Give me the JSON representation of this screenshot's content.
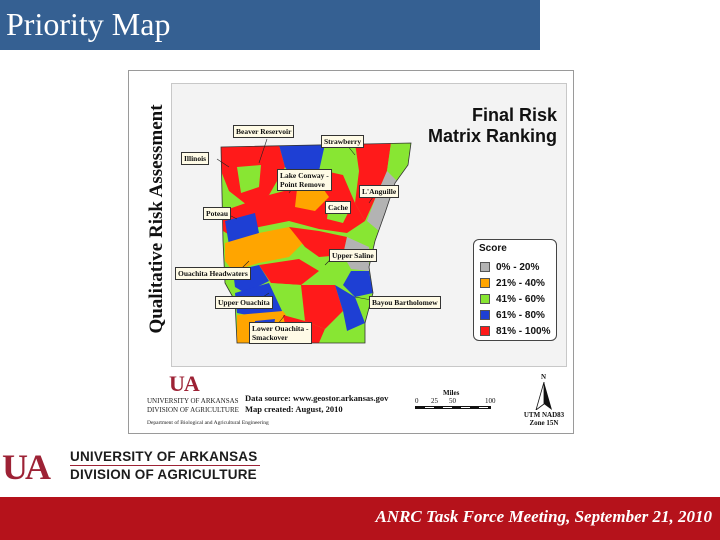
{
  "slide": {
    "title": "Priority Map",
    "footer": "ANRC Task Force Meeting, September 21, 2010"
  },
  "map": {
    "vertical_title": "Qualitative Risk Assessment",
    "risk_title_line1": "Final Risk",
    "risk_title_line2": "Matrix Ranking",
    "legend": {
      "title": "Score",
      "items": [
        {
          "label": "0% - 20%",
          "color": "#b3b3b3"
        },
        {
          "label": "21% - 40%",
          "color": "#ffa500"
        },
        {
          "label": "41% - 60%",
          "color": "#88e633"
        },
        {
          "label": "61% - 80%",
          "color": "#1e3fd4"
        },
        {
          "label": "81% - 100%",
          "color": "#ff1a1a"
        }
      ]
    },
    "labels": {
      "beaver_reservoir": "Beaver Reservoir",
      "strawberry": "Strawberry",
      "illinois": "Illinois",
      "lake_conway_1": "Lake Conway -",
      "lake_conway_2": "Point Remove",
      "l_anguille": "L'Anguille",
      "cache": "Cache",
      "poteau": "Poteau",
      "upper_saline": "Upper Saline",
      "ouachita_headwaters": "Ouachita Headwaters",
      "upper_ouachita": "Upper Ouachita",
      "bayou_bartholomew": "Bayou Bartholomew",
      "lower_ouachita_1": "Lower Ouachita -",
      "lower_ouachita_2": "Smackover"
    },
    "data_source": "Data source: www.geostor.arkansas.gov",
    "map_created": "Map created: August, 2010",
    "small_logo": {
      "mark": "UA",
      "line1": "UNIVERSITY OF ARKANSAS",
      "line2": "DIVISION OF AGRICULTURE",
      "dept": "Department of Biological and Agricultural Engineering"
    },
    "scale": {
      "title": "Miles",
      "ticks": [
        "0",
        "25",
        "50",
        "100"
      ]
    },
    "compass": {
      "north": "N",
      "projection": "UTM NAD83",
      "zone": "Zone 15N"
    }
  },
  "bottom_logo": {
    "mark": "UA",
    "line1": "UNIVERSITY OF ARKANSAS",
    "line2": "DIVISION OF AGRICULTURE"
  },
  "colors": {
    "title_bar": "#356092",
    "footer_bar": "#b5121b",
    "brand_red": "#9d2235"
  }
}
